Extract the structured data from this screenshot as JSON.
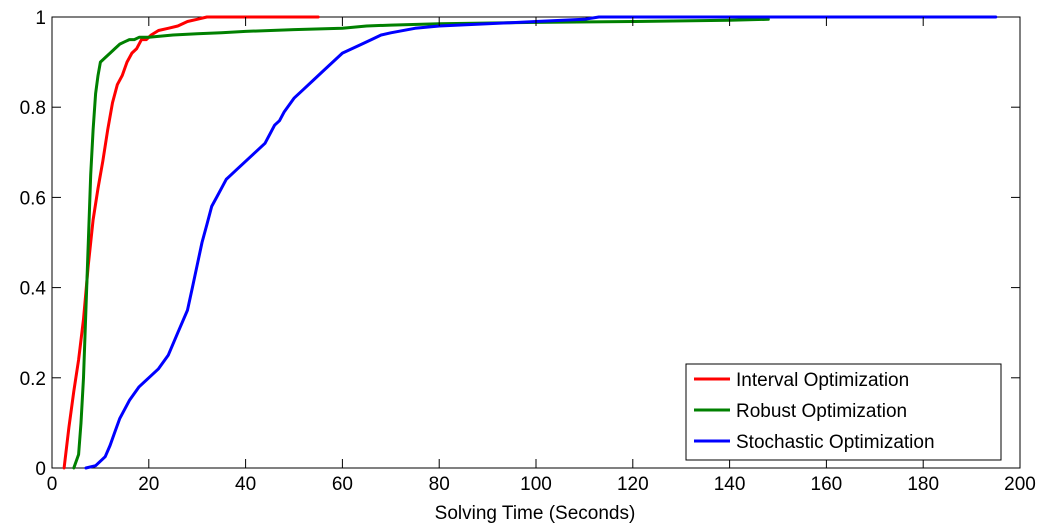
{
  "chart_data": {
    "type": "line",
    "title": "",
    "xlabel": "Solving Time (Seconds)",
    "ylabel": "",
    "xlim": [
      0,
      200
    ],
    "ylim": [
      0,
      1
    ],
    "xticks": [
      0,
      20,
      40,
      60,
      80,
      100,
      120,
      140,
      160,
      180,
      200
    ],
    "yticks": [
      0,
      0.2,
      0.4,
      0.6,
      0.8,
      1
    ],
    "xtick_labels": [
      "0",
      "20",
      "40",
      "60",
      "80",
      "100",
      "120",
      "140",
      "160",
      "180",
      "200"
    ],
    "ytick_labels": [
      "0",
      "0.2",
      "0.4",
      "0.6",
      "0.8",
      "1"
    ],
    "grid": false,
    "legend_position": "bottom-right",
    "series": [
      {
        "name": "Interval Optimization",
        "color": "#ff0000",
        "x": [
          2.5,
          3.5,
          4.5,
          5.5,
          6.5,
          7.5,
          8.5,
          9.5,
          10.5,
          11.5,
          12.5,
          13.5,
          14.5,
          15.5,
          16.5,
          17.5,
          18.5,
          19.5,
          20.5,
          22,
          24,
          26,
          28,
          30,
          32,
          35,
          40,
          45,
          50,
          55
        ],
        "y": [
          0,
          0.09,
          0.17,
          0.24,
          0.33,
          0.45,
          0.55,
          0.62,
          0.68,
          0.75,
          0.81,
          0.85,
          0.87,
          0.9,
          0.92,
          0.93,
          0.95,
          0.95,
          0.96,
          0.97,
          0.975,
          0.98,
          0.99,
          0.995,
          1,
          1,
          1,
          1,
          1,
          1
        ]
      },
      {
        "name": "Robust Optimization",
        "color": "#008000",
        "x": [
          4.5,
          5.5,
          6,
          6.5,
          7,
          7.5,
          8,
          8.5,
          9,
          9.5,
          10,
          11,
          12,
          13,
          14,
          15,
          16,
          17,
          18,
          20,
          25,
          30,
          35,
          40,
          50,
          60,
          65,
          70,
          80,
          100,
          120,
          140,
          148
        ],
        "y": [
          0,
          0.03,
          0.1,
          0.2,
          0.35,
          0.5,
          0.65,
          0.75,
          0.83,
          0.87,
          0.9,
          0.91,
          0.92,
          0.93,
          0.94,
          0.945,
          0.95,
          0.95,
          0.955,
          0.955,
          0.96,
          0.963,
          0.965,
          0.968,
          0.972,
          0.975,
          0.98,
          0.982,
          0.985,
          0.988,
          0.99,
          0.993,
          0.995
        ]
      },
      {
        "name": "Stochastic Optimization",
        "color": "#0000ff",
        "x": [
          7,
          9,
          10,
          11,
          12,
          13,
          14,
          15,
          16,
          18,
          20,
          22,
          24,
          26,
          28,
          29,
          30,
          31,
          32,
          33,
          34,
          35,
          36,
          37,
          38,
          40,
          42,
          44,
          46,
          47,
          48,
          50,
          52,
          54,
          56,
          58,
          60,
          62,
          64,
          66,
          68,
          70,
          75,
          80,
          90,
          100,
          110,
          113,
          120,
          140,
          160,
          180,
          195
        ],
        "y": [
          0,
          0.005,
          0.015,
          0.025,
          0.05,
          0.08,
          0.11,
          0.13,
          0.15,
          0.18,
          0.2,
          0.22,
          0.25,
          0.3,
          0.35,
          0.4,
          0.45,
          0.5,
          0.54,
          0.58,
          0.6,
          0.62,
          0.64,
          0.65,
          0.66,
          0.68,
          0.7,
          0.72,
          0.76,
          0.77,
          0.79,
          0.82,
          0.84,
          0.86,
          0.88,
          0.9,
          0.92,
          0.93,
          0.94,
          0.95,
          0.96,
          0.965,
          0.975,
          0.98,
          0.985,
          0.99,
          0.995,
          1,
          1,
          1,
          1,
          1,
          1
        ]
      }
    ]
  }
}
